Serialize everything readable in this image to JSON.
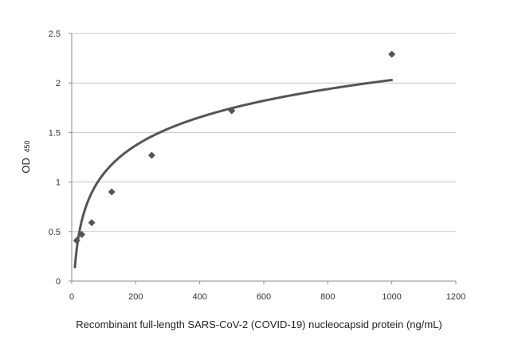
{
  "chart_data": {
    "type": "scatter",
    "xlabel": "Recombinant full-length SARS-CoV-2 (COVID-19) nucleocapsid protein (ng/mL)",
    "ylabel": "OD",
    "ylabel_subscript": "450",
    "xlim": [
      0,
      1200
    ],
    "ylim": [
      0,
      2.5
    ],
    "x_ticks": [
      0,
      200,
      400,
      600,
      800,
      1000,
      1200
    ],
    "y_ticks": [
      0,
      0.5,
      1,
      1.5,
      2,
      2.5
    ],
    "x_tick_labels": [
      "0",
      "200",
      "400",
      "600",
      "800",
      "1000",
      "1200"
    ],
    "y_tick_labels": [
      "0",
      "0.5",
      "1",
      "1.5",
      "2",
      "2.5"
    ],
    "grid": "horizontal",
    "series": [
      {
        "x": [
          15.6,
          31.25,
          62.5,
          125,
          250,
          500,
          1000
        ],
        "y": [
          0.41,
          0.47,
          0.59,
          0.9,
          1.27,
          1.72,
          2.29
        ],
        "marker": "diamond",
        "color": "#555555"
      }
    ],
    "trendline": {
      "type": "logarithmic",
      "x_range": [
        10,
        1000
      ],
      "y_at_x_range": [
        0.14,
        2.03
      ],
      "color": "#555555"
    }
  }
}
